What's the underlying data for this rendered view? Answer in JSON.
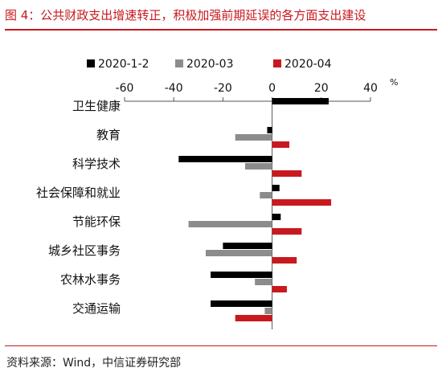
{
  "title": "图 4：公共财政支出增速转正，积极加强前期延误的各方面支出建设",
  "source": "资料来源：Wind，中信证券研究部",
  "chart_data": {
    "type": "bar",
    "orientation": "horizontal",
    "categories": [
      "卫生健康",
      "教育",
      "科学技术",
      "社会保障和就业",
      "节能环保",
      "城乡社区事务",
      "农林水事务",
      "交通运输"
    ],
    "series": [
      {
        "name": "2020-1-2",
        "color": "#000000",
        "values": [
          23,
          -2,
          -38,
          3,
          3.5,
          -20,
          -25,
          -25
        ]
      },
      {
        "name": "2020-03",
        "color": "#8c8c8c",
        "values": [
          0,
          -15,
          -11,
          -5,
          -34,
          -27,
          -7,
          -3
        ]
      },
      {
        "name": "2020-04",
        "color": "#c8191f",
        "values": [
          0,
          7,
          12,
          24,
          12,
          10,
          6,
          -15
        ]
      }
    ],
    "xlim": [
      -60,
      40
    ],
    "xticks": [
      -60,
      -40,
      -20,
      0,
      20,
      40
    ],
    "unit_label": "%",
    "axis_position": "top",
    "legend_position": "top",
    "grid": false
  }
}
